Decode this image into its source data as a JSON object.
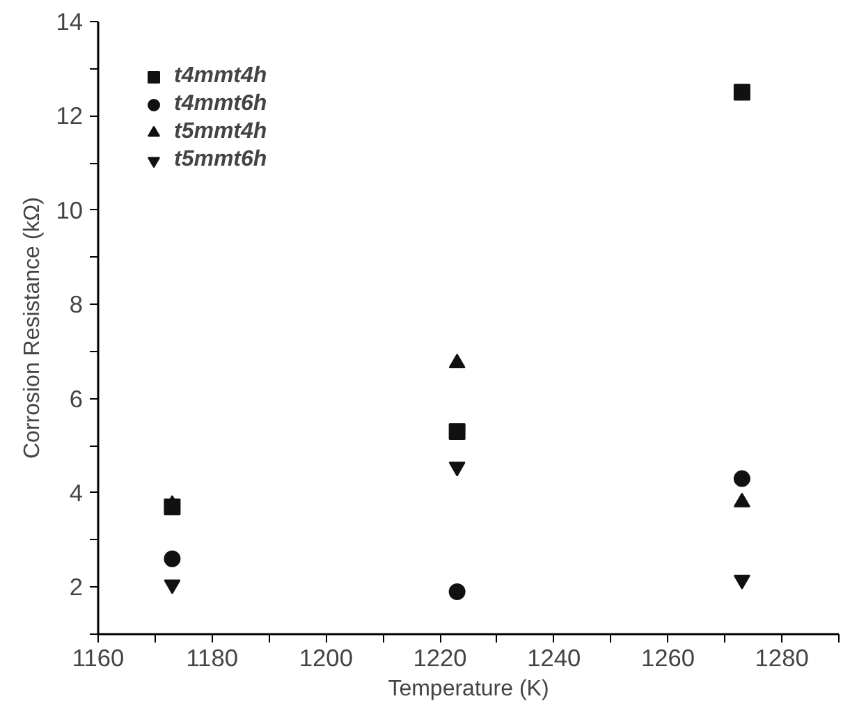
{
  "chart_data": {
    "type": "scatter",
    "xlabel": "Temperature (K)",
    "ylabel": "Corrosion Resistance (kΩ)",
    "x": [
      1173,
      1223,
      1273
    ],
    "series": [
      {
        "name": "t4mmt4h",
        "color": "#111111",
        "marker": "square",
        "values": [
          3.7,
          5.3,
          12.5
        ]
      },
      {
        "name": "t4mmt6h",
        "color": "#111111",
        "marker": "circle",
        "values": [
          2.6,
          1.9,
          4.3
        ]
      },
      {
        "name": "t5mmt4h",
        "color": "#111111",
        "marker": "triangle",
        "values": [
          3.75,
          6.75,
          3.8
        ]
      },
      {
        "name": "t5mmt6h",
        "color": "#111111",
        "values": [
          2.05,
          4.55,
          2.15
        ]
      }
    ],
    "xlim": [
      1160,
      1290
    ],
    "xticks": [
      1160,
      {
        "value": 1170,
        "label": null
      },
      1180,
      {
        "value": 1190,
        "label": null
      },
      1200,
      {
        "value": 1210,
        "label": null
      },
      1220,
      {
        "value": 1230,
        "label": null
      },
      1240,
      {
        "value": 1250,
        "label": null
      },
      1260,
      {
        "value": 1270,
        "label": null
      },
      1280,
      {
        "value": 1290,
        "label": null
      }
    ],
    "ylim": [
      1,
      14
    ],
    "yticks": [
      {
        "value": 1,
        "label": null
      },
      2,
      {
        "value": 3,
        "label": null
      },
      4,
      {
        "value": 5,
        "label": null
      },
      6,
      {
        "value": 7,
        "label": null
      },
      8,
      {
        "value": 9,
        "label": null
      },
      10,
      {
        "value": 11,
        "label": null
      },
      12,
      {
        "value": 13,
        "label": null
      },
      14
    ],
    "grid": false,
    "legend": "top left"
  }
}
